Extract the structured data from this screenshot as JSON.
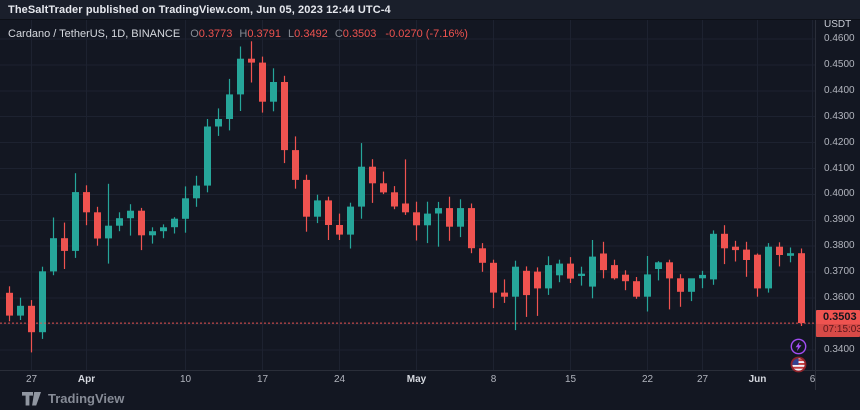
{
  "publisher_bar": {
    "text": "TheSaltTrader published on TradingView.com, Jun 05, 2023 12:44 UTC-4"
  },
  "legend": {
    "title": "Cardano / TetherUS, 1D, BINANCE",
    "symbol": "Cardano / TetherUS",
    "interval": "1D",
    "exchange": "BINANCE",
    "ohlc": [
      {
        "label": "O",
        "value": "0.3773"
      },
      {
        "label": "H",
        "value": "0.3791"
      },
      {
        "label": "L",
        "value": "0.3492"
      },
      {
        "label": "C",
        "value": "0.3503"
      }
    ],
    "change": "-0.0270 (-7.16%)"
  },
  "price_axis": {
    "unit": "USDT",
    "visible_labels": [
      "0.4600",
      "0.4500",
      "0.4400",
      "0.4300",
      "0.4200",
      "0.4100",
      "0.4000",
      "0.3900",
      "0.3800",
      "0.3700",
      "0.3600",
      "0.3400"
    ],
    "last_price_label": {
      "price": "0.3503",
      "countdown": "07:15:03"
    }
  },
  "time_axis": {
    "ticks": [
      {
        "label": "27",
        "index": 2,
        "month": false
      },
      {
        "label": "Apr",
        "index": 7,
        "month": true
      },
      {
        "label": "10",
        "index": 16,
        "month": false
      },
      {
        "label": "17",
        "index": 23,
        "month": false
      },
      {
        "label": "24",
        "index": 30,
        "month": false
      },
      {
        "label": "May",
        "index": 37,
        "month": true
      },
      {
        "label": "8",
        "index": 44,
        "month": false
      },
      {
        "label": "15",
        "index": 51,
        "month": false
      },
      {
        "label": "22",
        "index": 58,
        "month": false
      },
      {
        "label": "27",
        "index": 63,
        "month": false
      },
      {
        "label": "Jun",
        "index": 68,
        "month": true
      },
      {
        "label": "6",
        "index": 73,
        "month": false
      }
    ]
  },
  "watermark": {
    "text": "TradingView"
  },
  "event_icons": [
    {
      "name": "lightning-event-icon"
    },
    {
      "name": "us-flag-event-icon"
    }
  ],
  "colors": {
    "background": "#131722",
    "topbar": "#1a1f2b",
    "grid": "#1d2230",
    "border": "#2a2e39",
    "up": "#26a69a",
    "down": "#ef5350",
    "axis_text": "#b2b5be",
    "label_bg": "#ef5350",
    "accent_purple": "#a14df2"
  },
  "chart_data": {
    "type": "candlestick",
    "title": "Cardano / TetherUS, 1D, BINANCE",
    "ylabel": "USDT",
    "ylim": [
      0.34,
      0.46
    ],
    "grid_step": 0.01,
    "last_close": 0.3503,
    "columns": [
      "date",
      "open",
      "high",
      "low",
      "close"
    ],
    "candles": [
      [
        "Mar 25",
        0.362,
        0.3645,
        0.351,
        0.3532
      ],
      [
        "Mar 26",
        0.3532,
        0.3601,
        0.3515,
        0.357
      ],
      [
        "Mar 27",
        0.357,
        0.3592,
        0.339,
        0.3468
      ],
      [
        "Mar 28",
        0.3468,
        0.3721,
        0.3442,
        0.3703
      ],
      [
        "Mar 29",
        0.3703,
        0.3911,
        0.3688,
        0.3831
      ],
      [
        "Mar 30",
        0.3831,
        0.3891,
        0.3712,
        0.3782
      ],
      [
        "Mar 31",
        0.3782,
        0.4082,
        0.3755,
        0.4009
      ],
      [
        "Apr 1",
        0.4009,
        0.4035,
        0.3881,
        0.3931
      ],
      [
        "Apr 2",
        0.3931,
        0.3952,
        0.3802,
        0.383
      ],
      [
        "Apr 3",
        0.383,
        0.4041,
        0.3733,
        0.3879
      ],
      [
        "Apr 4",
        0.3879,
        0.3931,
        0.3858,
        0.3908
      ],
      [
        "Apr 5",
        0.3908,
        0.3962,
        0.3841,
        0.3937
      ],
      [
        "Apr 6",
        0.3937,
        0.3948,
        0.3785,
        0.3842
      ],
      [
        "Apr 7",
        0.3842,
        0.3873,
        0.381,
        0.3858
      ],
      [
        "Apr 8",
        0.3858,
        0.3884,
        0.3831,
        0.3873
      ],
      [
        "Apr 9",
        0.3873,
        0.3912,
        0.3849,
        0.3906
      ],
      [
        "Apr 10",
        0.3906,
        0.4031,
        0.3852,
        0.3985
      ],
      [
        "Apr 11",
        0.3985,
        0.4072,
        0.3952,
        0.4034
      ],
      [
        "Apr 12",
        0.4034,
        0.4291,
        0.4008,
        0.4262
      ],
      [
        "Apr 13",
        0.4262,
        0.4332,
        0.4226,
        0.4291
      ],
      [
        "Apr 14",
        0.4291,
        0.4446,
        0.4247,
        0.4386
      ],
      [
        "Apr 15",
        0.4386,
        0.4571,
        0.4322,
        0.4524
      ],
      [
        "Apr 16",
        0.4524,
        0.4591,
        0.4432,
        0.4509
      ],
      [
        "Apr 17",
        0.4509,
        0.4532,
        0.4316,
        0.4358
      ],
      [
        "Apr 18",
        0.4358,
        0.4487,
        0.4321,
        0.4434
      ],
      [
        "Apr 19",
        0.4434,
        0.4458,
        0.4121,
        0.4171
      ],
      [
        "Apr 20",
        0.4171,
        0.4224,
        0.4022,
        0.4056
      ],
      [
        "Apr 21",
        0.4056,
        0.4076,
        0.3856,
        0.3914
      ],
      [
        "Apr 22",
        0.3914,
        0.3999,
        0.3889,
        0.3977
      ],
      [
        "Apr 23",
        0.3977,
        0.3991,
        0.3824,
        0.3882
      ],
      [
        "Apr 24",
        0.3882,
        0.3926,
        0.3824,
        0.3845
      ],
      [
        "Apr 25",
        0.3845,
        0.3968,
        0.3791,
        0.3953
      ],
      [
        "Apr 26",
        0.3953,
        0.4198,
        0.3906,
        0.4107
      ],
      [
        "Apr 27",
        0.4107,
        0.4136,
        0.3967,
        0.4043
      ],
      [
        "Apr 28",
        0.4043,
        0.4088,
        0.4001,
        0.4008
      ],
      [
        "Apr 29",
        0.4008,
        0.4032,
        0.3943,
        0.3953
      ],
      [
        "Apr 30",
        0.3965,
        0.4135,
        0.3921,
        0.3931
      ],
      [
        "May 1",
        0.3931,
        0.3972,
        0.3822,
        0.3881
      ],
      [
        "May 2",
        0.3881,
        0.3972,
        0.3812,
        0.3926
      ],
      [
        "May 3",
        0.3926,
        0.3971,
        0.3798,
        0.3947
      ],
      [
        "May 4",
        0.3947,
        0.3991,
        0.3821,
        0.3875
      ],
      [
        "May 5",
        0.3875,
        0.3981,
        0.3835,
        0.3947
      ],
      [
        "May 6",
        0.3947,
        0.3965,
        0.3773,
        0.3792
      ],
      [
        "May 7",
        0.3792,
        0.3812,
        0.3701,
        0.3736
      ],
      [
        "May 8",
        0.3736,
        0.3748,
        0.3561,
        0.3621
      ],
      [
        "May 9",
        0.3621,
        0.3672,
        0.3581,
        0.3605
      ],
      [
        "May 10",
        0.3605,
        0.3744,
        0.3476,
        0.3721
      ],
      [
        "May 11",
        0.3705,
        0.3722,
        0.3527,
        0.3611
      ],
      [
        "May 12",
        0.3702,
        0.3718,
        0.3531,
        0.3637
      ],
      [
        "May 13",
        0.3637,
        0.3761,
        0.3612,
        0.3727
      ],
      [
        "May 14",
        0.3688,
        0.3748,
        0.3661,
        0.3733
      ],
      [
        "May 15",
        0.3733,
        0.3758,
        0.3658,
        0.3675
      ],
      [
        "May 16",
        0.3685,
        0.3721,
        0.3648,
        0.3694
      ],
      [
        "May 17",
        0.3644,
        0.3824,
        0.3599,
        0.376
      ],
      [
        "May 18",
        0.3772,
        0.3817,
        0.3676,
        0.3708
      ],
      [
        "May 19",
        0.3727,
        0.3748,
        0.3671,
        0.3676
      ],
      [
        "May 20",
        0.369,
        0.3707,
        0.363,
        0.3665
      ],
      [
        "May 21",
        0.3665,
        0.3681,
        0.3597,
        0.3605
      ],
      [
        "May 22",
        0.3605,
        0.3762,
        0.3548,
        0.3691
      ],
      [
        "May 23",
        0.3712,
        0.3742,
        0.3668,
        0.3738
      ],
      [
        "May 24",
        0.3738,
        0.3748,
        0.3556,
        0.3676
      ],
      [
        "May 25",
        0.3676,
        0.3692,
        0.3566,
        0.3624
      ],
      [
        "May 26",
        0.3624,
        0.3671,
        0.3588,
        0.3676
      ],
      [
        "May 27",
        0.3676,
        0.3705,
        0.3638,
        0.3689
      ],
      [
        "May 28",
        0.3672,
        0.3861,
        0.3651,
        0.3848
      ],
      [
        "May 29",
        0.3848,
        0.3881,
        0.3731,
        0.3792
      ],
      [
        "May 30",
        0.3798,
        0.3821,
        0.3741,
        0.3785
      ],
      [
        "May 31",
        0.3787,
        0.3817,
        0.3682,
        0.3747
      ],
      [
        "Jun 1",
        0.3767,
        0.3772,
        0.3605,
        0.3637
      ],
      [
        "Jun 2",
        0.3637,
        0.3812,
        0.3621,
        0.3798
      ],
      [
        "Jun 3",
        0.3798,
        0.3815,
        0.3722,
        0.3766
      ],
      [
        "Jun 4",
        0.3763,
        0.3795,
        0.3738,
        0.3773
      ],
      [
        "Jun 5",
        0.3773,
        0.3791,
        0.3492,
        0.3503
      ]
    ]
  }
}
